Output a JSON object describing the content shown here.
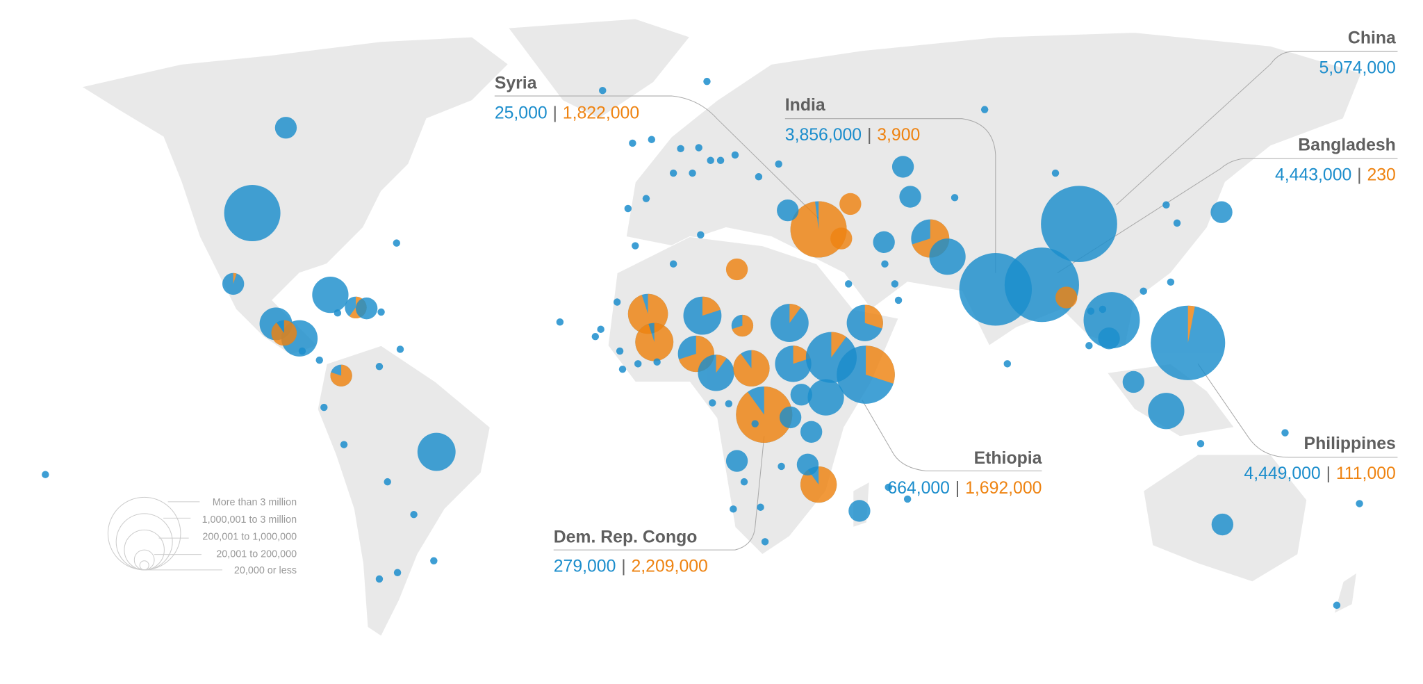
{
  "colors": {
    "series_a": "#1b8dcc",
    "series_b": "#ee8311",
    "land": "#e9e9e9"
  },
  "legend": {
    "items": [
      "More than 3 million",
      "1,000,001 to 3 million",
      "200,001 to 1,000,000",
      "20,001 to 200,000",
      "20,000 or less"
    ]
  },
  "callouts": [
    {
      "key": "china",
      "name": "China",
      "blue": "5,074,000",
      "orange": null
    },
    {
      "key": "bangladesh",
      "name": "Bangladesh",
      "blue": "4,443,000",
      "orange": "230"
    },
    {
      "key": "philippines",
      "name": "Philippines",
      "blue": "4,449,000",
      "orange": "111,000"
    },
    {
      "key": "syria",
      "name": "Syria",
      "blue": "25,000",
      "orange": "1,822,000"
    },
    {
      "key": "india",
      "name": "India",
      "blue": "3,856,000",
      "orange": "3,900"
    },
    {
      "key": "ethiopia",
      "name": "Ethiopia",
      "blue": "664,000",
      "orange": "1,692,000"
    },
    {
      "key": "drc",
      "name": "Dem. Rep. Congo",
      "blue": "279,000",
      "orange": "2,209,000"
    }
  ],
  "separator": "|"
}
